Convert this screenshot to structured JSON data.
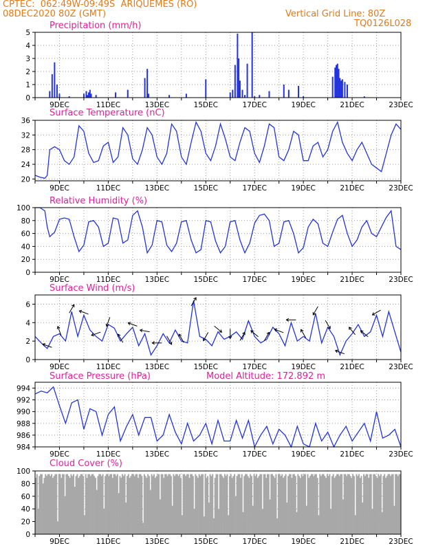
{
  "header": {
    "line1_left": "CPTEC:  062:49W-09:49S  ARIQUEMES (RO)",
    "line2_left": "08DEC2020 80Z (GMT)",
    "line1_right": "Vertical Grid Line: 80Z",
    "line2_right": "TQ0126L028"
  },
  "colors": {
    "header": "#e07b1a",
    "title": "#e0209a",
    "series": "#2233dd",
    "cloud": "#a8a8a8",
    "grid": "#9a9a9a"
  },
  "chart_data": [
    {
      "type": "bar",
      "title": "Precipitation (mm/h)",
      "ylim": [
        0,
        5
      ],
      "yticks": [
        0,
        1,
        2,
        3,
        4,
        5
      ],
      "xticks": [
        "9DEC",
        "11DEC",
        "13DEC",
        "15DEC",
        "17DEC",
        "19DEC",
        "21DEC",
        "23DEC"
      ],
      "x_day": [
        0.6,
        0.7,
        0.8,
        0.9,
        1.0,
        1.4,
        2.0,
        2.1,
        2.15,
        2.2,
        2.25,
        2.3,
        2.5,
        3.3,
        3.8,
        4.5,
        4.6,
        4.65,
        5.5,
        6.2,
        7.0,
        8.0,
        8.1,
        8.2,
        8.3,
        8.35,
        8.4,
        8.5,
        8.6,
        8.7,
        8.9,
        9.0,
        9.2,
        9.6,
        10.2,
        10.4,
        10.8,
        11.0,
        12.2,
        12.3,
        12.35,
        12.4,
        12.45,
        12.5,
        12.55,
        12.6,
        12.7,
        12.8,
        13.5
      ],
      "values": [
        0.5,
        1.8,
        2.7,
        1.0,
        0.3,
        0.1,
        0.3,
        0.5,
        0.2,
        0.4,
        0.6,
        0.3,
        0.2,
        0.4,
        0.6,
        1.5,
        2.2,
        0.3,
        0.2,
        0.3,
        1.4,
        0.4,
        0.6,
        2.5,
        4.9,
        3.0,
        1.3,
        0.6,
        0.2,
        2.6,
        5.0,
        0.1,
        0.2,
        0.5,
        1.0,
        0.6,
        0.9,
        0.1,
        1.6,
        2.3,
        2.5,
        2.6,
        2.2,
        1.5,
        1.3,
        1.4,
        1.2,
        1.0,
        0.1
      ]
    },
    {
      "type": "line",
      "title": "Surface Temperature (nC)",
      "ylim": [
        19.5,
        36
      ],
      "yticks": [
        20,
        24,
        28,
        32,
        36
      ],
      "xticks": [
        "9DEC",
        "11DEC",
        "13DEC",
        "15DEC",
        "17DEC",
        "19DEC",
        "21DEC",
        "23DEC"
      ],
      "x_day": [
        0.0,
        0.2,
        0.4,
        0.5,
        0.6,
        0.8,
        1.0,
        1.2,
        1.4,
        1.6,
        1.8,
        2.0,
        2.2,
        2.4,
        2.6,
        2.8,
        3.0,
        3.2,
        3.4,
        3.6,
        3.8,
        4.0,
        4.2,
        4.4,
        4.6,
        4.8,
        5.0,
        5.2,
        5.4,
        5.6,
        5.8,
        6.0,
        6.2,
        6.4,
        6.6,
        6.8,
        7.0,
        7.2,
        7.4,
        7.6,
        7.8,
        8.0,
        8.2,
        8.4,
        8.6,
        8.8,
        9.0,
        9.2,
        9.4,
        9.6,
        9.8,
        10.0,
        10.2,
        10.4,
        10.6,
        10.8,
        11.0,
        11.2,
        11.4,
        11.6,
        11.8,
        12.0,
        12.2,
        12.4,
        12.6,
        12.8,
        13.0,
        13.2,
        13.4,
        13.6,
        13.8,
        14.0,
        14.2,
        14.4,
        14.6,
        14.8,
        15.0
      ],
      "values": [
        21,
        20.5,
        20.2,
        21,
        28,
        28.8,
        28,
        25,
        24,
        26,
        34.5,
        33,
        27,
        24.5,
        25,
        29,
        30,
        24.5,
        26,
        34,
        32,
        25.5,
        24,
        28,
        34,
        32,
        26,
        24,
        27,
        35,
        33,
        26,
        24,
        30,
        35.5,
        33,
        27,
        25,
        29,
        35,
        31,
        26,
        25,
        30,
        34,
        33,
        27,
        24.5,
        29,
        35,
        34,
        26,
        25,
        28,
        33,
        32,
        25,
        25,
        29,
        30,
        26,
        28,
        33,
        35.5,
        30,
        27,
        25,
        28,
        30,
        27,
        24,
        23,
        22,
        27,
        32,
        35,
        33.5
      ]
    },
    {
      "type": "line",
      "title": "Relative Humidity (%)",
      "ylim": [
        0,
        100
      ],
      "yticks": [
        0,
        20,
        40,
        60,
        80,
        100
      ],
      "xticks": [
        "9DEC",
        "11DEC",
        "13DEC",
        "15DEC",
        "17DEC",
        "19DEC",
        "21DEC",
        "23DEC"
      ],
      "x_day": [
        0.0,
        0.2,
        0.4,
        0.5,
        0.6,
        0.8,
        1.0,
        1.2,
        1.4,
        1.6,
        1.8,
        2.0,
        2.2,
        2.4,
        2.6,
        2.8,
        3.0,
        3.2,
        3.4,
        3.6,
        3.8,
        4.0,
        4.2,
        4.4,
        4.6,
        4.8,
        5.0,
        5.2,
        5.4,
        5.6,
        5.8,
        6.0,
        6.2,
        6.4,
        6.6,
        6.8,
        7.0,
        7.2,
        7.4,
        7.6,
        7.8,
        8.0,
        8.2,
        8.4,
        8.6,
        8.8,
        9.0,
        9.2,
        9.4,
        9.6,
        9.8,
        10.0,
        10.2,
        10.4,
        10.6,
        10.8,
        11.0,
        11.2,
        11.4,
        11.6,
        11.8,
        12.0,
        12.2,
        12.4,
        12.6,
        12.8,
        13.0,
        13.2,
        13.4,
        13.6,
        13.8,
        14.0,
        14.2,
        14.4,
        14.6,
        14.8,
        15.0
      ],
      "values": [
        100,
        100,
        95,
        70,
        55,
        62,
        82,
        84,
        82,
        55,
        32,
        42,
        78,
        80,
        70,
        40,
        45,
        84,
        82,
        45,
        50,
        88,
        95,
        70,
        30,
        42,
        80,
        78,
        42,
        32,
        45,
        78,
        80,
        50,
        30,
        35,
        80,
        78,
        48,
        30,
        40,
        78,
        80,
        50,
        30,
        45,
        76,
        88,
        90,
        80,
        40,
        45,
        78,
        80,
        60,
        30,
        38,
        70,
        82,
        75,
        45,
        40,
        62,
        82,
        88,
        60,
        40,
        50,
        70,
        80,
        60,
        55,
        70,
        85,
        95,
        40,
        35
      ]
    },
    {
      "type": "line",
      "title": "Surface Wind (m/s)",
      "ylim": [
        0,
        7
      ],
      "yticks": [
        0,
        2,
        4,
        6
      ],
      "xticks": [
        "9DEC",
        "11DEC",
        "13DEC",
        "15DEC",
        "17DEC",
        "19DEC",
        "21DEC",
        "23DEC"
      ],
      "x_day": [
        0.0,
        0.25,
        0.5,
        0.75,
        1.0,
        1.25,
        1.5,
        1.75,
        2.0,
        2.25,
        2.5,
        2.75,
        3.0,
        3.25,
        3.5,
        3.75,
        4.0,
        4.25,
        4.5,
        4.75,
        5.0,
        5.25,
        5.5,
        5.75,
        6.0,
        6.25,
        6.5,
        6.75,
        7.0,
        7.25,
        7.5,
        7.75,
        8.0,
        8.25,
        8.5,
        8.75,
        9.0,
        9.25,
        9.5,
        9.75,
        10.0,
        10.25,
        10.5,
        10.75,
        11.0,
        11.25,
        11.5,
        11.75,
        12.0,
        12.25,
        12.5,
        12.75,
        13.0,
        13.25,
        13.5,
        13.75,
        14.0,
        14.25,
        14.5,
        14.75,
        15.0
      ],
      "values": [
        2.5,
        1.8,
        1.2,
        2.5,
        2.8,
        2.0,
        5.2,
        2.5,
        4.8,
        3.2,
        2.5,
        2.0,
        3.8,
        3.4,
        2.0,
        2.8,
        3.5,
        1.5,
        2.8,
        0.5,
        1.5,
        2.8,
        1.8,
        3.2,
        2.0,
        1.8,
        6.4,
        2.5,
        2.2,
        1.5,
        3.0,
        2.2,
        2.5,
        3.0,
        2.2,
        4.2,
        2.5,
        1.8,
        2.2,
        3.5,
        2.8,
        1.5,
        4.0,
        2.0,
        2.5,
        2.0,
        5.0,
        1.8,
        3.5,
        2.5,
        0.5,
        2.0,
        2.8,
        3.8,
        2.5,
        3.0,
        4.8,
        2.5,
        5.2,
        3.0,
        0.8
      ]
    },
    {
      "type": "line",
      "title": "Surface Pressure (hPa)",
      "annotation": "Model Altitude: 172.892 m",
      "ylim": [
        984,
        995
      ],
      "yticks": [
        984,
        986,
        988,
        990,
        992,
        994
      ],
      "xticks": [
        "9DEC",
        "11DEC",
        "13DEC",
        "15DEC",
        "17DEC",
        "19DEC",
        "21DEC",
        "23DEC"
      ],
      "x_day": [
        0.0,
        0.25,
        0.5,
        0.75,
        1.0,
        1.25,
        1.5,
        1.75,
        2.0,
        2.25,
        2.5,
        2.75,
        3.0,
        3.25,
        3.5,
        3.75,
        4.0,
        4.25,
        4.5,
        4.75,
        5.0,
        5.25,
        5.5,
        5.75,
        6.0,
        6.25,
        6.5,
        6.75,
        7.0,
        7.25,
        7.5,
        7.75,
        8.0,
        8.25,
        8.5,
        8.75,
        9.0,
        9.25,
        9.5,
        9.75,
        10.0,
        10.25,
        10.5,
        10.75,
        11.0,
        11.25,
        11.5,
        11.75,
        12.0,
        12.25,
        12.5,
        12.75,
        13.0,
        13.25,
        13.5,
        13.75,
        14.0,
        14.25,
        14.5,
        14.75,
        15.0
      ],
      "values": [
        993,
        993.5,
        993.2,
        994.2,
        991,
        988,
        991.5,
        992,
        987,
        990.5,
        990,
        986,
        989.5,
        990.8,
        985,
        987.5,
        989.5,
        986,
        989,
        989,
        985,
        986,
        989.5,
        986.5,
        984.5,
        988,
        985,
        986,
        988,
        984.5,
        988.5,
        985,
        985,
        988.5,
        985.5,
        988.5,
        984,
        986,
        987.5,
        984.5,
        987,
        986,
        984,
        987.5,
        984.5,
        984,
        988,
        985,
        986.5,
        984,
        986,
        987.5,
        985,
        986.5,
        988,
        985,
        990,
        985.5,
        986,
        987,
        984
      ]
    },
    {
      "type": "bar",
      "title": "Cloud Cover (%)",
      "ylim": [
        0,
        100
      ],
      "yticks": [
        0,
        20,
        40,
        60,
        80,
        100
      ],
      "xticks": [
        "9DEC",
        "11DEC",
        "13DEC",
        "15DEC",
        "17DEC",
        "19DEC",
        "21DEC",
        "23DEC"
      ],
      "baseline": 95,
      "dip_day": [
        0.1,
        0.3,
        0.9,
        1.2,
        1.6,
        2.0,
        2.5,
        2.8,
        3.4,
        3.7,
        4.4,
        4.7,
        5.1,
        5.6,
        6.0,
        6.5,
        6.9,
        7.1,
        7.3,
        7.5,
        7.9,
        8.2,
        8.5,
        8.9,
        9.3,
        9.6,
        9.9,
        10.3,
        10.7,
        11.1,
        11.6,
        12.1,
        12.6,
        13.1,
        13.4,
        13.8,
        14.2,
        14.7
      ],
      "dip_value": [
        40,
        80,
        20,
        60,
        75,
        30,
        70,
        40,
        65,
        50,
        18,
        70,
        55,
        45,
        30,
        40,
        28,
        50,
        25,
        40,
        30,
        60,
        35,
        45,
        40,
        55,
        25,
        50,
        35,
        45,
        30,
        40,
        55,
        30,
        50,
        40,
        35,
        45
      ]
    }
  ]
}
